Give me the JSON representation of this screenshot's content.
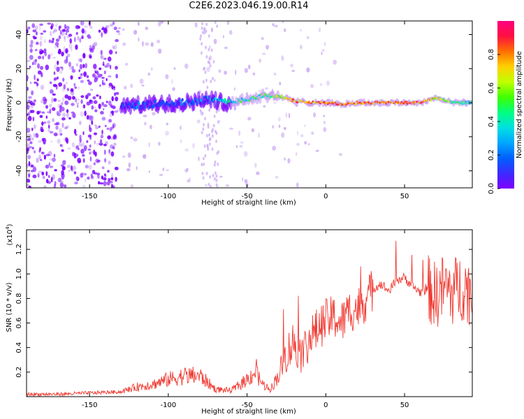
{
  "title": "C2E6.2023.046.19.00.R14",
  "colors": {
    "snr_line": "#f03a32",
    "spectrum_main": "#7a00ff",
    "spectrum_faint": "#c9a6f2",
    "colorbar": [
      "#7f00ff",
      "#3b2bff",
      "#0060ff",
      "#00a6ff",
      "#00e0e0",
      "#00ff80",
      "#40ff00",
      "#c0ff00",
      "#ffd000",
      "#ff7000",
      "#ff1040",
      "#ff0080"
    ]
  },
  "chart_data": [
    {
      "type": "heatmap",
      "title": "C2E6.2023.046.19.00.R14",
      "xlabel": "Height of straight line (km)",
      "ylabel": "Frequency (Hz)",
      "xlim": [
        -190,
        93
      ],
      "ylim": [
        -50,
        48
      ],
      "x_ticks": [
        -150,
        -100,
        -50,
        0,
        50
      ],
      "y_ticks": [
        -40,
        -20,
        0,
        20,
        40
      ],
      "colorbar": {
        "label": "Normalized spectral amplitude",
        "range": [
          0.0,
          1.0
        ],
        "ticks": [
          0.0,
          0.2,
          0.4,
          0.6,
          0.8
        ],
        "tick_labels": [
          "0.0",
          "0.2",
          "0.4",
          "0.6",
          "0.8"
        ]
      },
      "doppler_track": [
        {
          "x": -130,
          "freq": -2,
          "amp": 0.25
        },
        {
          "x": -110,
          "freq": -1,
          "amp": 0.3
        },
        {
          "x": -90,
          "freq": 0,
          "amp": 0.35
        },
        {
          "x": -75,
          "freq": 2,
          "amp": 0.35
        },
        {
          "x": -62,
          "freq": 0,
          "amp": 0.5
        },
        {
          "x": -50,
          "freq": 2,
          "amp": 0.55
        },
        {
          "x": -40,
          "freq": 4,
          "amp": 0.6
        },
        {
          "x": -30,
          "freq": 4,
          "amp": 0.75
        },
        {
          "x": -20,
          "freq": 1,
          "amp": 0.9
        },
        {
          "x": -10,
          "freq": 0,
          "amp": 0.95
        },
        {
          "x": 0,
          "freq": 0,
          "amp": 0.95
        },
        {
          "x": 10,
          "freq": -1,
          "amp": 0.95
        },
        {
          "x": 20,
          "freq": 0,
          "amp": 0.95
        },
        {
          "x": 40,
          "freq": 0,
          "amp": 0.95
        },
        {
          "x": 60,
          "freq": 0,
          "amp": 0.95
        },
        {
          "x": 70,
          "freq": 3,
          "amp": 0.8
        },
        {
          "x": 80,
          "freq": 0,
          "amp": 0.6
        },
        {
          "x": 93,
          "freq": 0,
          "amp": 0.5
        }
      ]
    },
    {
      "type": "line",
      "xlabel": "Height of straight line (km)",
      "ylabel": "SNR (10 * v/v)",
      "y_multiplier": "(x10",
      "y_multiplier_exp": "4",
      "y_multiplier_close": ")",
      "xlim": [
        -190,
        93
      ],
      "ylim": [
        0,
        1.36
      ],
      "x_ticks": [
        -150,
        -100,
        -50,
        0,
        50
      ],
      "y_ticks": [
        0.2,
        0.4,
        0.6,
        0.8,
        1.0,
        1.2
      ],
      "y_tick_labels": [
        "0.2",
        "0.4",
        "0.6",
        "0.8",
        "1.0",
        "1.2"
      ],
      "series": [
        {
          "x": [
            -190,
            -170,
            -150,
            -130,
            -120,
            -110,
            -100,
            -90,
            -80,
            -70,
            -60,
            -50,
            -45,
            -40,
            -35,
            -30,
            -25,
            -20,
            -15,
            -10,
            -5,
            0,
            5,
            10,
            15,
            20,
            25,
            30,
            35,
            40,
            45,
            50,
            55,
            60,
            65,
            70,
            75,
            80,
            85,
            90,
            93
          ],
          "values": [
            0.02,
            0.02,
            0.03,
            0.04,
            0.08,
            0.1,
            0.14,
            0.17,
            0.17,
            0.06,
            0.05,
            0.14,
            0.2,
            0.1,
            0.06,
            0.18,
            0.35,
            0.45,
            0.35,
            0.48,
            0.55,
            0.62,
            0.65,
            0.6,
            0.7,
            0.72,
            0.78,
            0.88,
            0.92,
            0.86,
            0.95,
            0.97,
            0.9,
            0.85,
            0.88,
            0.82,
            0.9,
            0.85,
            0.9,
            0.88,
            0.82
          ]
        }
      ]
    }
  ]
}
